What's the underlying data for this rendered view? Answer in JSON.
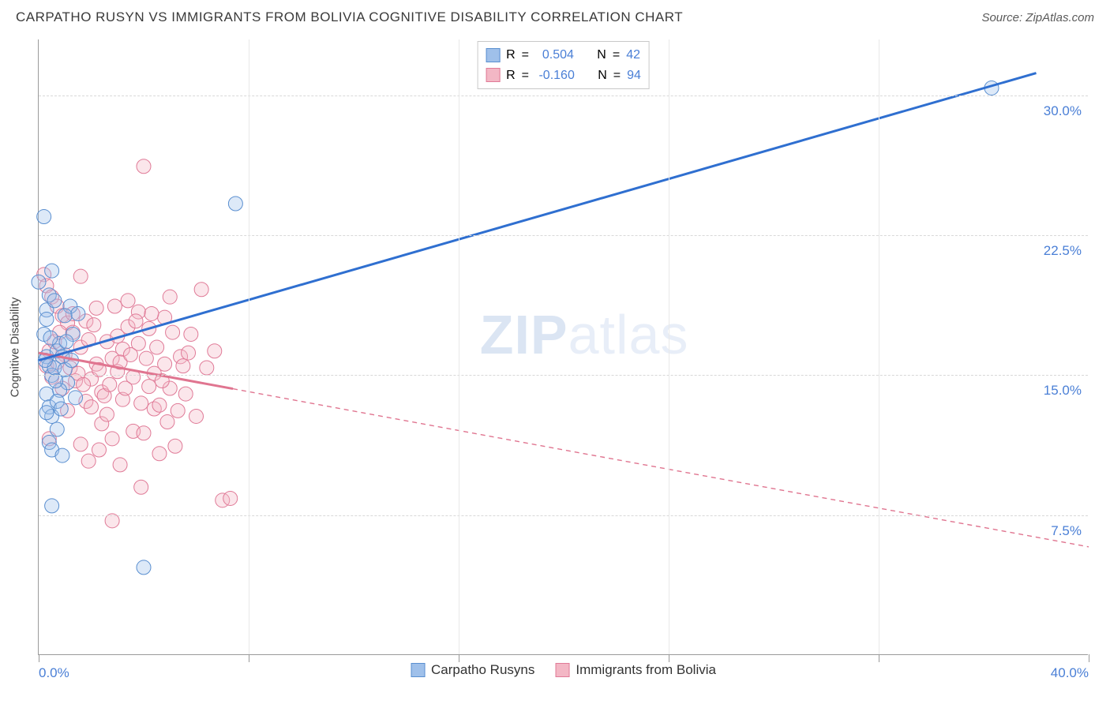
{
  "title": "CARPATHO RUSYN VS IMMIGRANTS FROM BOLIVIA COGNITIVE DISABILITY CORRELATION CHART",
  "source_label": "Source: ZipAtlas.com",
  "watermark": {
    "bold": "ZIP",
    "light": "atlas"
  },
  "y_axis_label": "Cognitive Disability",
  "chart": {
    "type": "scatter",
    "background_color": "#ffffff",
    "grid_color_h": "#d8d8d8",
    "grid_color_v": "#e8e8e8",
    "axis_color": "#9a9a9a",
    "xlim": [
      0,
      40
    ],
    "ylim": [
      0,
      33
    ],
    "x_ticks": [
      0,
      8,
      16,
      24,
      32,
      40
    ],
    "x_tick_labels": [
      "0.0%",
      "",
      "",
      "",
      "",
      "40.0%"
    ],
    "y_ticks": [
      7.5,
      15.0,
      22.5,
      30.0
    ],
    "y_tick_labels": [
      "7.5%",
      "15.0%",
      "22.5%",
      "30.0%"
    ],
    "marker_radius": 9,
    "marker_opacity": 0.35,
    "line_width_solid": 3,
    "line_width_dash": 1.4,
    "dash_pattern": "6 5"
  },
  "series": {
    "a": {
      "label": "Carpatho Rusyns",
      "color_fill": "#9fc0ea",
      "color_stroke": "#5a8fd0",
      "line_color": "#2f6fd0",
      "R": "0.504",
      "N": "42",
      "trend": {
        "x1": 0.0,
        "y1": 15.8,
        "x2": 38.0,
        "y2": 31.2,
        "solid_until_x": 38.0
      },
      "points": [
        [
          0.0,
          20.0
        ],
        [
          0.2,
          23.5
        ],
        [
          0.3,
          18.5
        ],
        [
          0.3,
          18.0
        ],
        [
          0.4,
          19.3
        ],
        [
          0.5,
          20.6
        ],
        [
          0.2,
          17.2
        ],
        [
          0.3,
          16.0
        ],
        [
          0.4,
          15.5
        ],
        [
          0.5,
          15.0
        ],
        [
          0.6,
          15.4
        ],
        [
          0.7,
          16.3
        ],
        [
          0.8,
          16.7
        ],
        [
          0.9,
          16.0
        ],
        [
          1.0,
          15.3
        ],
        [
          1.1,
          14.6
        ],
        [
          1.2,
          18.7
        ],
        [
          1.4,
          13.8
        ],
        [
          0.3,
          14.0
        ],
        [
          0.4,
          13.3
        ],
        [
          0.5,
          12.8
        ],
        [
          0.7,
          12.1
        ],
        [
          0.4,
          11.4
        ],
        [
          0.5,
          11.0
        ],
        [
          0.9,
          10.7
        ],
        [
          0.5,
          8.0
        ],
        [
          4.0,
          4.7
        ],
        [
          7.5,
          24.2
        ],
        [
          0.6,
          19.0
        ],
        [
          0.3,
          13.0
        ],
        [
          0.8,
          14.2
        ],
        [
          1.3,
          17.2
        ],
        [
          0.7,
          13.6
        ],
        [
          1.0,
          18.2
        ],
        [
          36.3,
          30.4
        ],
        [
          0.25,
          15.8
        ],
        [
          0.45,
          17.0
        ],
        [
          0.65,
          14.7
        ],
        [
          0.85,
          13.2
        ],
        [
          1.05,
          16.8
        ],
        [
          1.25,
          15.8
        ],
        [
          1.5,
          18.3
        ]
      ]
    },
    "b": {
      "label": "Immigrants from Bolivia",
      "color_fill": "#f3b7c5",
      "color_stroke": "#e07a97",
      "line_color": "#e07590",
      "R": "-0.160",
      "N": "94",
      "trend": {
        "x1": 0.0,
        "y1": 16.2,
        "x2": 40.0,
        "y2": 5.8,
        "solid_until_x": 7.4
      },
      "points": [
        [
          0.2,
          20.4
        ],
        [
          0.3,
          19.8
        ],
        [
          0.5,
          19.2
        ],
        [
          0.7,
          18.7
        ],
        [
          0.9,
          18.2
        ],
        [
          1.1,
          17.8
        ],
        [
          1.3,
          17.3
        ],
        [
          1.6,
          20.3
        ],
        [
          1.8,
          13.6
        ],
        [
          2.0,
          14.8
        ],
        [
          2.2,
          15.6
        ],
        [
          2.4,
          12.4
        ],
        [
          2.6,
          16.8
        ],
        [
          2.8,
          11.6
        ],
        [
          3.0,
          15.2
        ],
        [
          3.2,
          16.4
        ],
        [
          3.4,
          17.6
        ],
        [
          3.6,
          12.0
        ],
        [
          3.8,
          18.4
        ],
        [
          4.0,
          26.2
        ],
        [
          4.2,
          14.4
        ],
        [
          4.4,
          13.2
        ],
        [
          4.6,
          10.8
        ],
        [
          4.8,
          15.6
        ],
        [
          5.0,
          19.2
        ],
        [
          5.2,
          11.2
        ],
        [
          5.4,
          16.0
        ],
        [
          5.6,
          14.0
        ],
        [
          5.8,
          17.2
        ],
        [
          6.0,
          12.8
        ],
        [
          6.2,
          19.6
        ],
        [
          6.4,
          15.4
        ],
        [
          6.7,
          16.3
        ],
        [
          7.0,
          8.3
        ],
        [
          7.3,
          8.4
        ],
        [
          5.7,
          16.2
        ],
        [
          0.4,
          16.3
        ],
        [
          0.6,
          16.8
        ],
        [
          0.8,
          17.3
        ],
        [
          1.0,
          16.1
        ],
        [
          1.2,
          15.4
        ],
        [
          1.4,
          14.7
        ],
        [
          1.6,
          16.5
        ],
        [
          1.8,
          17.9
        ],
        [
          2.0,
          13.3
        ],
        [
          2.2,
          18.6
        ],
        [
          2.4,
          14.1
        ],
        [
          2.6,
          12.9
        ],
        [
          2.8,
          15.9
        ],
        [
          3.0,
          17.1
        ],
        [
          3.2,
          13.7
        ],
        [
          3.4,
          19.0
        ],
        [
          3.6,
          14.9
        ],
        [
          3.8,
          16.7
        ],
        [
          4.0,
          11.9
        ],
        [
          4.2,
          17.5
        ],
        [
          4.4,
          15.1
        ],
        [
          4.6,
          13.4
        ],
        [
          4.8,
          18.1
        ],
        [
          5.0,
          14.3
        ],
        [
          0.3,
          15.5
        ],
        [
          0.5,
          14.9
        ],
        [
          0.7,
          15.7
        ],
        [
          0.9,
          14.3
        ],
        [
          1.1,
          13.1
        ],
        [
          1.3,
          18.3
        ],
        [
          1.5,
          15.1
        ],
        [
          1.7,
          14.5
        ],
        [
          1.9,
          16.9
        ],
        [
          2.1,
          17.7
        ],
        [
          2.3,
          15.3
        ],
        [
          2.5,
          13.9
        ],
        [
          2.7,
          14.5
        ],
        [
          2.9,
          18.7
        ],
        [
          3.1,
          15.7
        ],
        [
          3.3,
          14.3
        ],
        [
          3.5,
          16.1
        ],
        [
          3.7,
          17.9
        ],
        [
          3.9,
          13.5
        ],
        [
          4.1,
          15.9
        ],
        [
          4.3,
          18.3
        ],
        [
          4.5,
          16.5
        ],
        [
          4.7,
          14.7
        ],
        [
          4.9,
          12.5
        ],
        [
          5.1,
          17.3
        ],
        [
          5.3,
          13.1
        ],
        [
          5.5,
          15.5
        ],
        [
          2.3,
          11.0
        ],
        [
          1.9,
          10.4
        ],
        [
          2.8,
          7.2
        ],
        [
          0.4,
          11.6
        ],
        [
          1.6,
          11.3
        ],
        [
          3.1,
          10.2
        ],
        [
          3.9,
          9.0
        ]
      ]
    }
  },
  "stats_legend": {
    "R_label": "R",
    "N_label": "N",
    "eq": "="
  }
}
